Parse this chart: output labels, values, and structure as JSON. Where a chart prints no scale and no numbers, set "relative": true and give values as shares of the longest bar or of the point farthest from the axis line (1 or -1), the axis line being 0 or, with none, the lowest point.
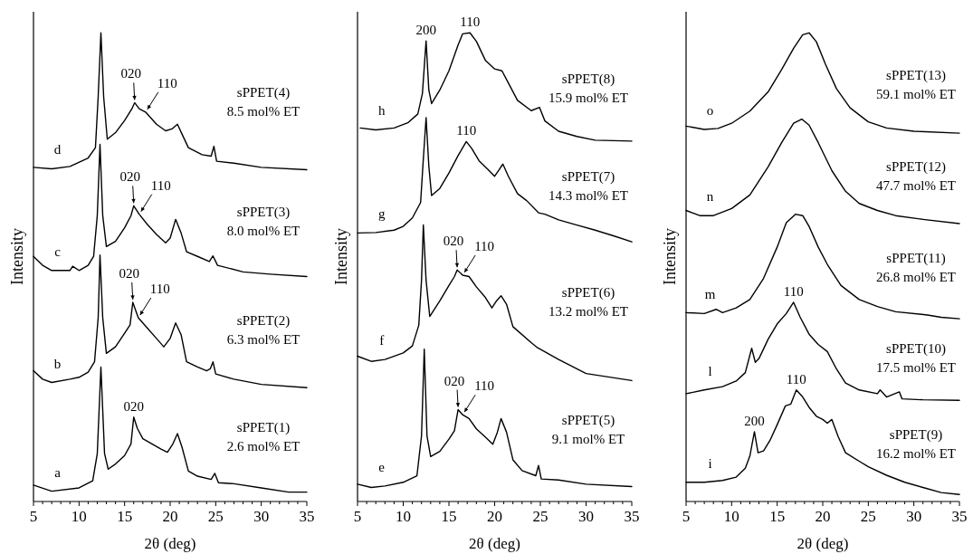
{
  "chart_data": [
    {
      "type": "line",
      "relative": true,
      "xlabel": "2θ (deg)",
      "ylabel": "Intensity",
      "xlim": [
        5,
        35
      ],
      "xticks": [
        5,
        {
          "value": 6,
          "label": null
        },
        {
          "value": 7,
          "label": null
        },
        {
          "value": 8,
          "label": null
        },
        {
          "value": 9,
          "label": null
        },
        10,
        {
          "value": 11,
          "label": null
        },
        {
          "value": 12,
          "label": null
        },
        {
          "value": 13,
          "label": null
        },
        {
          "value": 14,
          "label": null
        },
        15,
        {
          "value": 16,
          "label": null
        },
        {
          "value": 17,
          "label": null
        },
        {
          "value": 18,
          "label": null
        },
        {
          "value": 19,
          "label": null
        },
        20,
        {
          "value": 21,
          "label": null
        },
        {
          "value": 22,
          "label": null
        },
        {
          "value": 23,
          "label": null
        },
        {
          "value": 24,
          "label": null
        },
        25,
        {
          "value": 26,
          "label": null
        },
        {
          "value": 27,
          "label": null
        },
        {
          "value": 28,
          "label": null
        },
        {
          "value": 29,
          "label": null
        },
        30,
        {
          "value": 31,
          "label": null
        },
        {
          "value": 32,
          "label": null
        },
        {
          "value": 33,
          "label": null
        },
        {
          "value": 34,
          "label": null
        },
        35
      ],
      "grid": false,
      "legend": false,
      "marker": "none",
      "line_style": "solid",
      "series": [
        {
          "name": "sPPET(1) 2.6 mol% ET",
          "color": "#000000",
          "x": [
            5,
            7,
            10,
            11.5,
            12,
            12.4,
            12.8,
            13.2,
            14,
            15,
            15.7,
            16,
            16.4,
            17,
            18,
            19,
            19.7,
            20.3,
            20.8,
            21.3,
            22,
            23,
            24.5,
            24.9,
            25.3,
            27,
            30,
            33,
            35
          ],
          "values": [
            0.035,
            0.022,
            0.029,
            0.044,
            0.102,
            0.287,
            0.102,
            0.069,
            0.08,
            0.098,
            0.123,
            0.18,
            0.156,
            0.134,
            0.123,
            0.112,
            0.105,
            0.123,
            0.145,
            0.116,
            0.065,
            0.054,
            0.047,
            0.06,
            0.04,
            0.038,
            0.029,
            0.02,
            0.02
          ]
        },
        {
          "name": "sPPET(2) 6.3 mol% ET",
          "color": "#000000",
          "x": [
            5,
            6,
            7,
            9,
            10,
            11,
            11.7,
            12.1,
            12.3,
            12.6,
            13,
            14,
            15,
            15.6,
            15.9,
            16.5,
            17.5,
            18.5,
            19.3,
            20,
            20.6,
            21.2,
            21.8,
            23,
            24,
            24.4,
            24.7,
            25,
            27,
            30,
            35
          ],
          "values": [
            0.279,
            0.261,
            0.254,
            0.261,
            0.265,
            0.276,
            0.298,
            0.392,
            0.526,
            0.392,
            0.316,
            0.33,
            0.359,
            0.377,
            0.425,
            0.392,
            0.37,
            0.348,
            0.33,
            0.348,
            0.381,
            0.356,
            0.298,
            0.287,
            0.279,
            0.283,
            0.298,
            0.272,
            0.261,
            0.25,
            0.243
          ]
        },
        {
          "name": "sPPET(3) 8.0 mol% ET",
          "color": "#000000",
          "x": [
            5,
            6,
            7,
            9,
            9.3,
            10,
            11,
            11.6,
            12,
            12.3,
            12.6,
            13,
            14,
            15,
            15.7,
            16,
            16.6,
            17.5,
            18.5,
            19.5,
            20,
            20.6,
            21.2,
            21.8,
            23,
            24.3,
            24.7,
            25.2,
            28,
            31,
            35
          ],
          "values": [
            0.523,
            0.504,
            0.493,
            0.493,
            0.502,
            0.493,
            0.504,
            0.523,
            0.61,
            0.762,
            0.61,
            0.544,
            0.555,
            0.584,
            0.61,
            0.631,
            0.613,
            0.591,
            0.57,
            0.552,
            0.562,
            0.602,
            0.573,
            0.533,
            0.523,
            0.512,
            0.524,
            0.504,
            0.49,
            0.485,
            0.48
          ]
        },
        {
          "name": "sPPET(4) 8.5 mol% ET",
          "color": "#000000",
          "x": [
            5,
            7,
            9,
            11,
            11.8,
            12.1,
            12.4,
            12.7,
            13.1,
            14,
            15,
            15.8,
            16.1,
            16.6,
            17.3,
            18.5,
            19.5,
            20.2,
            20.8,
            21.3,
            22,
            23.5,
            24.5,
            24.8,
            25.1,
            27,
            30,
            35
          ],
          "values": [
            0.713,
            0.71,
            0.715,
            0.733,
            0.755,
            0.864,
            1,
            0.864,
            0.773,
            0.787,
            0.813,
            0.838,
            0.851,
            0.838,
            0.831,
            0.805,
            0.791,
            0.795,
            0.805,
            0.784,
            0.755,
            0.74,
            0.737,
            0.758,
            0.726,
            0.722,
            0.713,
            0.708
          ]
        }
      ],
      "annotations": [
        "a",
        "b",
        "c",
        "d",
        {
          "text": "020",
          "x": 16,
          "y": 0.18
        },
        {
          "text": "020",
          "x": 15.9,
          "y": 0.425
        },
        {
          "text": "110",
          "x": 16.5,
          "y": 0.392
        },
        {
          "text": "020",
          "x": 16,
          "y": 0.631
        },
        {
          "text": "110",
          "x": 16.6,
          "y": 0.613
        },
        {
          "text": "020",
          "x": 16.1,
          "y": 0.851
        },
        {
          "text": "110",
          "x": 17.3,
          "y": 0.831
        }
      ]
    },
    {
      "type": "line",
      "relative": true,
      "xlabel": "2θ (deg)",
      "ylabel": "Intensity",
      "xlim": [
        5,
        35
      ],
      "xticks": [
        5,
        {
          "value": 6,
          "label": null
        },
        {
          "value": 7,
          "label": null
        },
        {
          "value": 8,
          "label": null
        },
        {
          "value": 9,
          "label": null
        },
        10,
        {
          "value": 11,
          "label": null
        },
        {
          "value": 12,
          "label": null
        },
        {
          "value": 13,
          "label": null
        },
        {
          "value": 14,
          "label": null
        },
        15,
        {
          "value": 16,
          "label": null
        },
        {
          "value": 17,
          "label": null
        },
        {
          "value": 18,
          "label": null
        },
        {
          "value": 19,
          "label": null
        },
        20,
        {
          "value": 21,
          "label": null
        },
        {
          "value": 22,
          "label": null
        },
        {
          "value": 23,
          "label": null
        },
        {
          "value": 24,
          "label": null
        },
        25,
        {
          "value": 26,
          "label": null
        },
        {
          "value": 27,
          "label": null
        },
        {
          "value": 28,
          "label": null
        },
        {
          "value": 29,
          "label": null
        },
        30,
        {
          "value": 31,
          "label": null
        },
        {
          "value": 32,
          "label": null
        },
        {
          "value": 33,
          "label": null
        },
        {
          "value": 34,
          "label": null
        },
        35
      ],
      "grid": false,
      "legend": false,
      "marker": "none",
      "line_style": "solid",
      "series": [
        {
          "name": "sPPET(5) 9.1 mol% ET",
          "color": "#000000",
          "x": [
            5,
            6.5,
            8,
            10,
            11.5,
            12,
            12.3,
            12.6,
            13,
            14,
            15,
            15.6,
            16,
            16.5,
            17.2,
            18,
            19,
            19.8,
            20.3,
            20.7,
            21.3,
            22,
            23,
            24.5,
            24.8,
            25.1,
            27,
            30,
            35
          ],
          "values": [
            0.037,
            0.03,
            0.033,
            0.041,
            0.055,
            0.14,
            0.325,
            0.14,
            0.096,
            0.107,
            0.133,
            0.151,
            0.196,
            0.185,
            0.177,
            0.155,
            0.137,
            0.122,
            0.148,
            0.177,
            0.148,
            0.089,
            0.066,
            0.055,
            0.077,
            0.048,
            0.046,
            0.037,
            0.032
          ]
        },
        {
          "name": "sPPET(6) 13.2 mol% ET",
          "color": "#000000",
          "x": [
            5,
            6.5,
            8,
            10,
            11,
            11.7,
            12,
            12.2,
            12.5,
            12.9,
            14,
            15,
            15.6,
            15.9,
            16.5,
            17.2,
            18,
            19,
            19.7,
            20.2,
            20.7,
            21.3,
            22,
            24,
            24.7,
            27,
            30,
            35
          ],
          "values": [
            0.31,
            0.299,
            0.303,
            0.317,
            0.332,
            0.376,
            0.472,
            0.59,
            0.472,
            0.395,
            0.428,
            0.461,
            0.48,
            0.494,
            0.483,
            0.48,
            0.458,
            0.435,
            0.413,
            0.428,
            0.439,
            0.421,
            0.373,
            0.339,
            0.328,
            0.303,
            0.273,
            0.258
          ]
        },
        {
          "name": "sPPET(7) 14.3 mol% ET",
          "color": "#000000",
          "x": [
            5,
            7,
            9,
            10,
            11,
            11.9,
            12.2,
            12.5,
            12.8,
            13.1,
            14,
            15,
            16,
            16.9,
            17.5,
            18.3,
            19.3,
            20,
            20.5,
            20.9,
            21.5,
            22.5,
            23.5,
            24.8,
            25.5,
            27,
            29,
            31,
            33,
            35
          ],
          "values": [
            0.573,
            0.574,
            0.579,
            0.587,
            0.605,
            0.638,
            0.731,
            0.819,
            0.716,
            0.653,
            0.668,
            0.701,
            0.738,
            0.768,
            0.753,
            0.727,
            0.708,
            0.694,
            0.708,
            0.72,
            0.694,
            0.657,
            0.642,
            0.616,
            0.613,
            0.601,
            0.59,
            0.579,
            0.567,
            0.554
          ]
        },
        {
          "name": "sPPET(8) 15.9 mol% ET",
          "color": "#000000",
          "x": [
            5.3,
            7,
            9,
            10.5,
            11.6,
            12.1,
            12.5,
            12.8,
            13.1,
            14,
            15,
            16,
            16.5,
            17.3,
            18,
            19,
            20,
            20.8,
            21.5,
            22.5,
            24,
            24.9,
            25.5,
            27,
            29,
            31,
            35
          ],
          "values": [
            0.797,
            0.793,
            0.797,
            0.808,
            0.827,
            0.871,
            0.983,
            0.878,
            0.849,
            0.878,
            0.919,
            0.974,
            0.998,
            1,
            0.982,
            0.941,
            0.923,
            0.919,
            0.893,
            0.856,
            0.834,
            0.841,
            0.812,
            0.79,
            0.779,
            0.771,
            0.769
          ]
        }
      ],
      "annotations": [
        "e",
        "f",
        "g",
        "h",
        {
          "text": "020",
          "x": 16,
          "y": 0.196
        },
        {
          "text": "110",
          "x": 16.5,
          "y": 0.185
        },
        {
          "text": "020",
          "x": 15.9,
          "y": 0.494
        },
        {
          "text": "110",
          "x": 16.5,
          "y": 0.483
        },
        {
          "text": "110",
          "x": 16.9,
          "y": 0.768
        },
        {
          "text": "200",
          "x": 12.5,
          "y": 0.983
        },
        {
          "text": "110",
          "x": 17.3,
          "y": 1
        }
      ]
    },
    {
      "type": "line",
      "relative": true,
      "xlabel": "2θ (deg)",
      "ylabel": "Intensity",
      "xlim": [
        5,
        35
      ],
      "xticks": [
        5,
        {
          "value": 6,
          "label": null
        },
        {
          "value": 7,
          "label": null
        },
        {
          "value": 8,
          "label": null
        },
        {
          "value": 9,
          "label": null
        },
        10,
        {
          "value": 11,
          "label": null
        },
        {
          "value": 12,
          "label": null
        },
        {
          "value": 13,
          "label": null
        },
        {
          "value": 14,
          "label": null
        },
        15,
        {
          "value": 16,
          "label": null
        },
        {
          "value": 17,
          "label": null
        },
        {
          "value": 18,
          "label": null
        },
        {
          "value": 19,
          "label": null
        },
        20,
        {
          "value": 21,
          "label": null
        },
        {
          "value": 22,
          "label": null
        },
        {
          "value": 23,
          "label": null
        },
        {
          "value": 24,
          "label": null
        },
        25,
        {
          "value": 26,
          "label": null
        },
        {
          "value": 27,
          "label": null
        },
        {
          "value": 28,
          "label": null
        },
        {
          "value": 29,
          "label": null
        },
        30,
        {
          "value": 31,
          "label": null
        },
        {
          "value": 32,
          "label": null
        },
        {
          "value": 33,
          "label": null
        },
        {
          "value": 34,
          "label": null
        },
        35
      ],
      "grid": false,
      "legend": false,
      "marker": "none",
      "line_style": "solid",
      "series": [
        {
          "name": "sPPET(9) 16.2 mol% ET",
          "color": "#000000",
          "x": [
            5,
            7,
            9,
            10.5,
            11.5,
            12,
            12.5,
            12.9,
            13.5,
            14.2,
            15,
            15.9,
            16.5,
            17.1,
            17.8,
            18.5,
            19.3,
            20,
            20.5,
            21,
            21.7,
            22.5,
            24,
            25,
            27,
            29,
            31,
            33,
            35
          ],
          "values": [
            0.041,
            0.041,
            0.045,
            0.052,
            0.071,
            0.097,
            0.149,
            0.104,
            0.108,
            0.13,
            0.164,
            0.204,
            0.208,
            0.238,
            0.223,
            0.201,
            0.182,
            0.175,
            0.167,
            0.175,
            0.138,
            0.104,
            0.086,
            0.074,
            0.056,
            0.041,
            0.03,
            0.019,
            0.015
          ]
        },
        {
          "name": "sPPET(10) 17.5 mol% ET",
          "color": "#000000",
          "x": [
            5,
            7,
            9,
            10.5,
            11.5,
            12.2,
            12.6,
            13,
            14,
            15,
            16,
            16.8,
            17.5,
            18.5,
            19.5,
            20.5,
            21.5,
            22.5,
            24,
            26,
            26.3,
            27,
            28.4,
            28.7,
            31,
            35
          ],
          "values": [
            0.23,
            0.238,
            0.245,
            0.257,
            0.275,
            0.327,
            0.297,
            0.305,
            0.346,
            0.379,
            0.401,
            0.425,
            0.394,
            0.357,
            0.335,
            0.32,
            0.283,
            0.253,
            0.238,
            0.23,
            0.238,
            0.223,
            0.234,
            0.219,
            0.217,
            0.216
          ]
        },
        {
          "name": "sPPET(11) 26.8 mol% ET",
          "color": "#000000",
          "x": [
            5,
            7,
            8.3,
            9,
            10.5,
            12,
            13.5,
            15,
            16,
            17,
            17.8,
            18.5,
            19.5,
            20.5,
            22,
            24,
            26,
            28,
            31.5,
            33,
            35
          ],
          "values": [
            0.403,
            0.401,
            0.41,
            0.403,
            0.413,
            0.431,
            0.476,
            0.543,
            0.595,
            0.613,
            0.61,
            0.587,
            0.543,
            0.506,
            0.461,
            0.431,
            0.416,
            0.405,
            0.398,
            0.393,
            0.39
          ]
        },
        {
          "name": "sPPET(12) 47.7 mol% ET",
          "color": "#000000",
          "x": [
            5,
            6.5,
            8,
            10,
            12,
            14,
            15.5,
            16.8,
            17.7,
            18.5,
            19.5,
            21,
            22.5,
            24,
            26,
            28,
            31,
            35
          ],
          "values": [
            0.621,
            0.61,
            0.61,
            0.625,
            0.654,
            0.714,
            0.766,
            0.807,
            0.816,
            0.803,
            0.766,
            0.706,
            0.662,
            0.636,
            0.621,
            0.61,
            0.602,
            0.593
          ]
        },
        {
          "name": "sPPET(13) 59.1 mol% ET",
          "color": "#000000",
          "x": [
            5,
            7,
            8.5,
            10,
            12,
            14,
            15.5,
            16.8,
            17.8,
            18.5,
            19.3,
            20.3,
            21.5,
            23,
            25,
            27,
            30,
            35
          ],
          "values": [
            0.801,
            0.794,
            0.796,
            0.807,
            0.833,
            0.874,
            0.922,
            0.967,
            0.996,
            1,
            0.981,
            0.933,
            0.881,
            0.84,
            0.81,
            0.797,
            0.79,
            0.786
          ]
        }
      ],
      "annotations": [
        "i",
        "l",
        "m",
        "n",
        "o",
        {
          "text": "200",
          "x": 12.5,
          "y": 0.149
        },
        {
          "text": "110",
          "x": 17.1,
          "y": 0.238
        },
        {
          "text": "110",
          "x": 16.8,
          "y": 0.425
        }
      ]
    }
  ]
}
